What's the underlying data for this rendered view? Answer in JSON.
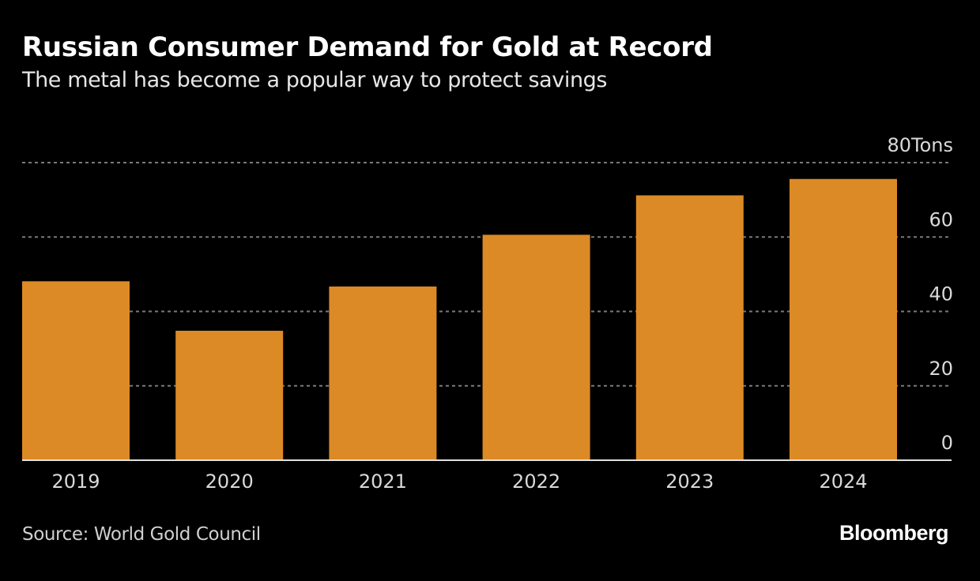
{
  "chart_data": {
    "type": "bar",
    "title": "Russian Consumer Demand for Gold at Record",
    "subtitle": "The metal has become a popular way to protect savings",
    "xlabel": "",
    "ylabel": "Tons",
    "y_unit_label": "Tons",
    "categories": [
      "2019",
      "2020",
      "2021",
      "2022",
      "2023",
      "2024"
    ],
    "values": [
      48.1,
      34.8,
      46.7,
      60.6,
      71.2,
      75.6
    ],
    "ylim": [
      0,
      80
    ],
    "yticks": [
      0,
      20,
      40,
      60,
      80
    ],
    "ytick_labels": [
      "0",
      "20",
      "40",
      "60",
      "80"
    ],
    "y_axis_side": "right",
    "grid": true,
    "legend": "none",
    "bar_color": "#dc8a26",
    "source": "Source: World Gold Council",
    "brand": "Bloomberg"
  }
}
